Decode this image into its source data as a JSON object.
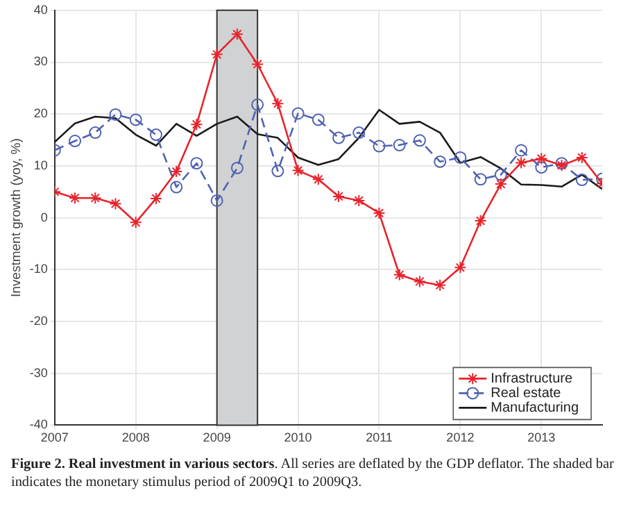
{
  "chart_data": {
    "type": "line",
    "ylabel": "Investment growth (yoy, %)",
    "x": [
      2007,
      2007.25,
      2007.5,
      2007.75,
      2008,
      2008.25,
      2008.5,
      2008.75,
      2009,
      2009.25,
      2009.5,
      2009.75,
      2010,
      2010.25,
      2010.5,
      2010.75,
      2011,
      2011.25,
      2011.5,
      2011.75,
      2012,
      2012.25,
      2012.5,
      2012.75,
      2013,
      2013.25,
      2013.5,
      2013.75
    ],
    "series": [
      {
        "name": "Infrastructure",
        "color": "#e8232b",
        "marker": "cross",
        "line_style": "solid",
        "values": [
          5.0,
          3.8,
          3.8,
          2.7,
          -0.9,
          3.7,
          8.9,
          18.0,
          31.5,
          35.4,
          29.6,
          22.0,
          9.1,
          7.4,
          4.1,
          3.3,
          0.9,
          -11.0,
          -12.3,
          -13.0,
          -9.6,
          -0.6,
          6.5,
          10.6,
          11.4,
          10.1,
          11.6,
          6.6
        ]
      },
      {
        "name": "Real estate",
        "color": "#4f62b0",
        "marker": "circle",
        "line_style": "dashed",
        "values": [
          13.0,
          14.8,
          16.4,
          19.9,
          18.9,
          16.0,
          5.9,
          10.5,
          3.3,
          9.6,
          21.8,
          9.0,
          20.1,
          18.9,
          15.4,
          16.4,
          13.8,
          14.0,
          14.9,
          10.8,
          11.6,
          7.4,
          8.3,
          13.0,
          9.7,
          10.5,
          7.3,
          7.5
        ]
      },
      {
        "name": "Manufacturing",
        "color": "#1a1a1a",
        "marker": "none",
        "line_style": "solid",
        "values": [
          14.6,
          18.2,
          19.5,
          19.2,
          16.0,
          13.9,
          18.1,
          15.8,
          18.1,
          19.5,
          16.1,
          15.4,
          11.6,
          10.2,
          11.3,
          15.4,
          20.8,
          18.1,
          18.5,
          16.4,
          10.6,
          11.7,
          9.5,
          6.4,
          6.3,
          6.0,
          8.3,
          5.5
        ]
      }
    ],
    "xlim": [
      2007,
      2013.75
    ],
    "xticks": [
      2007,
      2008,
      2009,
      2010,
      2011,
      2012,
      2013
    ],
    "ylim": [
      -40,
      40
    ],
    "yticks": [
      -40,
      -30,
      -20,
      -10,
      0,
      10,
      20,
      30,
      40
    ],
    "bands": [
      {
        "axis": "x",
        "from": 2009,
        "to": 2009.5,
        "color": "#d1d2d4"
      }
    ],
    "grid": true,
    "legend": "bottom right",
    "annotations": [
      "Figure 2. Real investment in various sectors",
      ". All series are deflated by the GDP deflator. The shaded bar indicates the monetary stimulus period of 2009Q1 to 2009Q3."
    ]
  }
}
